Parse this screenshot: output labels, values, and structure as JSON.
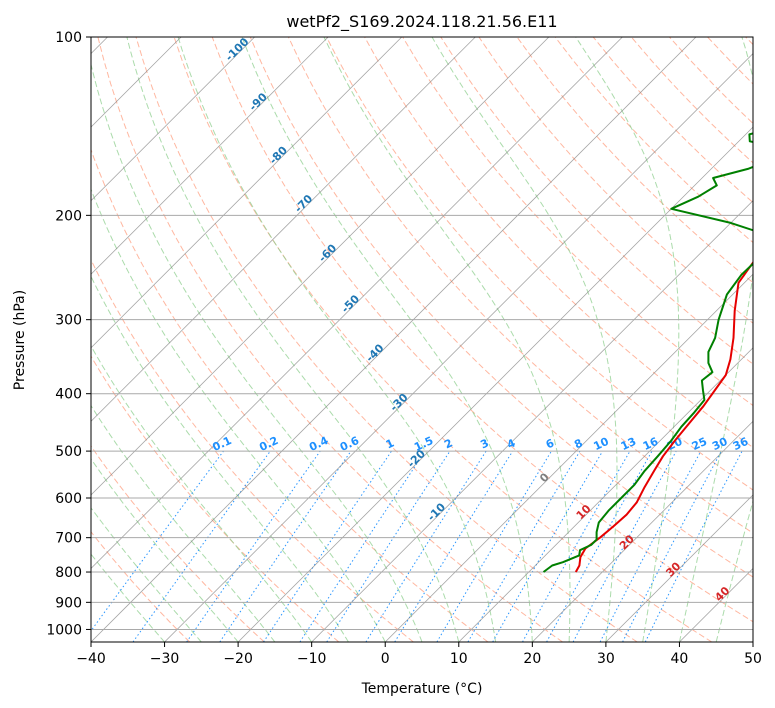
{
  "chart_data": {
    "type": "line",
    "title": "wetPf2_S169.2024.118.21.56.E11",
    "xlabel": "Temperature (°C)",
    "ylabel": "Pressure (hPa)",
    "xlim": [
      -40,
      50
    ],
    "ylim": [
      1050,
      100
    ],
    "y_scale": "log",
    "grid": true,
    "x_ticks": [
      "−40",
      "−30",
      "−20",
      "−10",
      "0",
      "10",
      "20",
      "30",
      "40",
      "50"
    ],
    "y_ticks": [
      "100",
      "200",
      "300",
      "400",
      "500",
      "600",
      "700",
      "800",
      "900",
      "1000"
    ],
    "y_tick_values": [
      100,
      200,
      300,
      400,
      500,
      600,
      700,
      800,
      900,
      1000
    ],
    "colors": {
      "temperature": "#e60000",
      "dewpoint": "#008000",
      "dry_adiabat": "#ff9f80",
      "moist_adiabat": "#8fcf8f",
      "mixing_ratio": "#1e90ff",
      "isotherm": "#808080",
      "isobar": "#a9a9a9",
      "mixing_ratio_label": "#1e90ff",
      "dry_adiabat_label": "#1f77b4",
      "moist_adiabat_label": "#d62728"
    },
    "series": [
      {
        "points": [
          [
            16.4,
            800
          ],
          [
            16.0,
            780
          ],
          [
            15.0,
            755
          ],
          [
            14.5,
            730
          ],
          [
            15.0,
            700
          ],
          [
            15.3,
            670
          ],
          [
            15.5,
            640
          ],
          [
            15.2,
            610
          ],
          [
            14.2,
            575
          ],
          [
            13.3,
            540
          ],
          [
            12.5,
            510
          ],
          [
            12.0,
            480
          ],
          [
            11.6,
            450
          ],
          [
            11.2,
            420
          ],
          [
            10.6,
            395
          ],
          [
            10.0,
            372
          ],
          [
            8.5,
            350
          ],
          [
            6.0,
            322
          ],
          [
            2.5,
            290
          ],
          [
            -0.8,
            260
          ],
          [
            -1.6,
            240
          ],
          [
            -1.1,
            228
          ],
          [
            2.0,
            215
          ],
          [
            8.0,
            205
          ],
          [
            14.0,
            195
          ],
          [
            17.3,
            187
          ],
          [
            18.5,
            178
          ],
          [
            19.5,
            168
          ],
          [
            21.0,
            158
          ],
          [
            22.5,
            149
          ],
          [
            23.2,
            141
          ],
          [
            23.5,
            133
          ],
          [
            23.0,
            125
          ],
          [
            22.6,
            118
          ],
          [
            22.9,
            112
          ],
          [
            24.0,
            106
          ],
          [
            25.5,
            101
          ],
          [
            26.2,
            99
          ]
        ]
      },
      {
        "points": [
          [
            12.0,
            800
          ],
          [
            12.3,
            780
          ],
          [
            13.3,
            770
          ],
          [
            14.6,
            750
          ],
          [
            14.0,
            735
          ],
          [
            14.8,
            720
          ],
          [
            14.8,
            705
          ],
          [
            13.8,
            685
          ],
          [
            12.8,
            660
          ],
          [
            12.5,
            630
          ],
          [
            12.5,
            600
          ],
          [
            12.5,
            570
          ],
          [
            12.0,
            540
          ],
          [
            11.8,
            510
          ],
          [
            11.5,
            480
          ],
          [
            11.0,
            455
          ],
          [
            10.8,
            430
          ],
          [
            10.5,
            410
          ],
          [
            9.0,
            395
          ],
          [
            7.5,
            380
          ],
          [
            7.8,
            368
          ],
          [
            6.0,
            355
          ],
          [
            4.5,
            340
          ],
          [
            3.5,
            322
          ],
          [
            1.5,
            300
          ],
          [
            -0.8,
            272
          ],
          [
            -1.5,
            252
          ],
          [
            -1.4,
            238
          ],
          [
            -1.7,
            228
          ],
          [
            -2.0,
            218
          ],
          [
            -10.0,
            206
          ],
          [
            -20.0,
            195
          ],
          [
            -18.0,
            186
          ],
          [
            -17.0,
            178
          ],
          [
            -18.5,
            173
          ],
          [
            -15.0,
            167
          ],
          [
            -12.5,
            160
          ],
          [
            -13.5,
            154
          ],
          [
            -18.5,
            150
          ],
          [
            -19.5,
            146
          ],
          [
            -17.0,
            142
          ],
          [
            -11.0,
            136
          ],
          [
            -7.5,
            130
          ],
          [
            -6.0,
            122
          ],
          [
            -6.5,
            117
          ],
          [
            -5.0,
            112
          ],
          [
            -4.5,
            107
          ],
          [
            -4.0,
            101
          ],
          [
            -3.8,
            99
          ]
        ]
      }
    ],
    "mixing_ratio_labels": [
      "0.1",
      "0.2",
      "0.4",
      "0.6",
      "1",
      "1.5",
      "2",
      "3",
      "4",
      "6",
      "8",
      "10",
      "13",
      "16",
      "20",
      "25",
      "30",
      "36"
    ],
    "mixing_ratio_values": [
      0.1,
      0.2,
      0.4,
      0.6,
      1,
      1.5,
      2,
      3,
      4,
      6,
      8,
      10,
      13,
      16,
      20,
      25,
      30,
      36
    ],
    "mixing_ratio_label_pressure": 500,
    "dry_adiabat_labels": [
      "-100",
      "-90",
      "-80",
      "-70",
      "-60",
      "-50",
      "-40",
      "-30",
      "-20",
      "-10"
    ],
    "dry_adiabat_label_points": [
      [
        -100,
        106
      ],
      [
        -90,
        130
      ],
      [
        -80,
        160
      ],
      [
        -70,
        193
      ],
      [
        -60,
        234
      ],
      [
        -50,
        285
      ],
      [
        -40,
        345
      ],
      [
        -30,
        418
      ],
      [
        -20,
        520
      ],
      [
        -10,
        640
      ]
    ],
    "moist_adiabat_labels": [
      "0",
      "10",
      "20",
      "30",
      "40"
    ],
    "moist_adiabat_label_points": [
      [
        0,
        560
      ],
      [
        10,
        640
      ],
      [
        20,
        720
      ],
      [
        30,
        800
      ],
      [
        40,
        880
      ]
    ]
  }
}
